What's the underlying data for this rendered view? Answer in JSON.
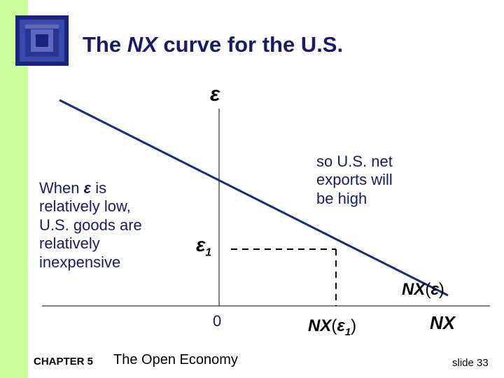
{
  "title": {
    "prefix": "The ",
    "nx": "NX",
    "suffix": " curve for the U.S."
  },
  "axes": {
    "y_label": "ε",
    "x_label": "NX",
    "origin_label": "0"
  },
  "curve": {
    "label_nx": "NX",
    "label_open": "(",
    "label_eps": "ε",
    "label_close": ")"
  },
  "point": {
    "eps_label": "ε",
    "eps_sub": "1",
    "nx_label": "NX",
    "nx_open": "(",
    "nx_eps": "ε",
    "nx_sub": "1",
    "nx_close": ")"
  },
  "note_left": {
    "line1_before": "When ",
    "line1_eps": "ε",
    "line1_after": " is",
    "line2": "relatively low,",
    "line3": "U.S. goods are",
    "line4": "relatively",
    "line5": "inexpensive"
  },
  "note_right": {
    "line1": "so U.S. net",
    "line2": "exports will",
    "line3": "be high"
  },
  "footer": {
    "chapter": "CHAPTER 5",
    "book": "The Open Economy",
    "slide": "slide 33"
  },
  "colors": {
    "accent": "#1a1a66",
    "band": "#ccff99",
    "curve": "#1a2a80"
  }
}
